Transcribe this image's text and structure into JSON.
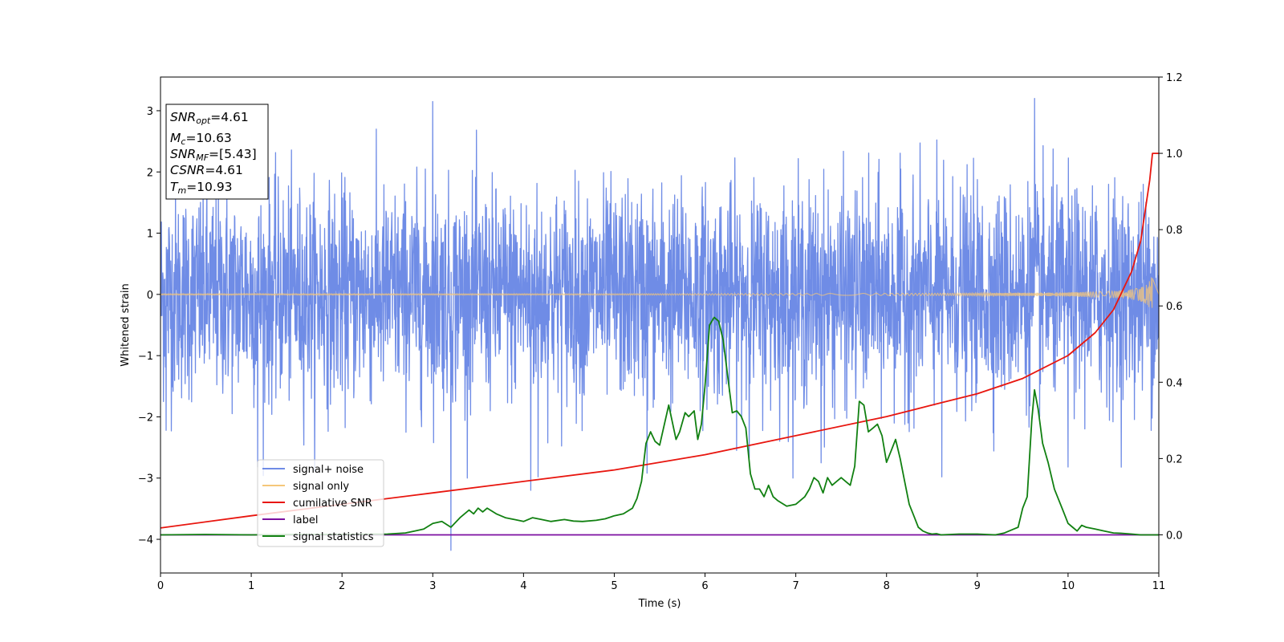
{
  "chart_data": {
    "type": "line",
    "xlabel": "Time (s)",
    "ylabel": "Whitened strain",
    "xlim": [
      0,
      11
    ],
    "ylim": [
      -4.55,
      3.55
    ],
    "ylim_right": [
      -0.1,
      1.2
    ],
    "x_ticks": [
      "0",
      "1",
      "2",
      "3",
      "4",
      "5",
      "6",
      "7",
      "8",
      "9",
      "10",
      "11"
    ],
    "y_ticks": [
      "−4",
      "−3",
      "−2",
      "−1",
      "0",
      "1",
      "2",
      "3"
    ],
    "y_ticks_right": [
      "0.0",
      "0.2",
      "0.4",
      "0.6",
      "0.8",
      "1.0",
      "1.2"
    ],
    "grid": false,
    "legend_position": "lower-left",
    "annotation": {
      "lines": [
        {
          "base": "SNR",
          "sub": "opt",
          "value": "=4.61"
        },
        {
          "base": "M",
          "sub": "c",
          "value": "=10.63"
        },
        {
          "base": "SNR",
          "sub": "MF",
          "value": "=[5.43]"
        },
        {
          "base": "CSNR",
          "sub": "",
          "value": "=4.61"
        },
        {
          "base": "T",
          "sub": "m",
          "value": "=10.93"
        }
      ]
    },
    "series": [
      {
        "name": "signal+ noise",
        "color": "#6f8ce6",
        "axis": "left",
        "style": "noise",
        "description_values": {
          "std": 0.85,
          "max": 3.2,
          "min": -4.18
        },
        "spikes": [
          {
            "x": 3.2,
            "y": -4.18
          },
          {
            "x": 9.63,
            "y": 3.2
          },
          {
            "x": 3.0,
            "y": 3.15
          },
          {
            "x": 4.08,
            "y": -3.2
          },
          {
            "x": 4.16,
            "y": -2.98
          },
          {
            "x": 5.36,
            "y": -2.92
          },
          {
            "x": 1.07,
            "y": -2.82
          },
          {
            "x": 7.28,
            "y": -2.75
          },
          {
            "x": 8.61,
            "y": -2.98
          },
          {
            "x": 10.0,
            "y": -2.82
          },
          {
            "x": 0.06,
            "y": -2.22
          }
        ]
      },
      {
        "name": "signal only",
        "color": "#f5c77a",
        "axis": "left",
        "style": "chirp",
        "amplitude_end": 0.5,
        "merger_time": 10.93
      },
      {
        "name": "cumilative SNR",
        "color": "#e8160f",
        "axis": "right",
        "x": [
          0,
          1,
          2,
          3,
          4,
          5,
          6,
          7,
          8,
          8.5,
          9,
          9.5,
          10,
          10.3,
          10.5,
          10.7,
          10.8,
          10.9,
          10.93,
          11
        ],
        "y": [
          0.018,
          0.05,
          0.08,
          0.11,
          0.14,
          0.17,
          0.21,
          0.26,
          0.31,
          0.34,
          0.37,
          0.41,
          0.47,
          0.53,
          0.59,
          0.69,
          0.77,
          0.93,
          1.0,
          1.0
        ]
      },
      {
        "name": "label",
        "color": "#7b0fa0",
        "axis": "right",
        "x": [
          0,
          11
        ],
        "y": [
          0,
          0
        ]
      },
      {
        "name": "signal statistics",
        "color": "#118011",
        "axis": "right",
        "x": [
          0,
          0.5,
          1,
          1.5,
          2,
          2.5,
          2.7,
          2.8,
          2.9,
          3.0,
          3.1,
          3.2,
          3.3,
          3.4,
          3.45,
          3.5,
          3.55,
          3.6,
          3.7,
          3.8,
          3.9,
          4.0,
          4.1,
          4.2,
          4.3,
          4.45,
          4.55,
          4.65,
          4.8,
          4.9,
          5.0,
          5.1,
          5.2,
          5.25,
          5.3,
          5.35,
          5.4,
          5.45,
          5.5,
          5.6,
          5.68,
          5.72,
          5.78,
          5.82,
          5.88,
          5.92,
          5.96,
          6.0,
          6.05,
          6.1,
          6.15,
          6.2,
          6.3,
          6.35,
          6.4,
          6.45,
          6.5,
          6.55,
          6.6,
          6.65,
          6.7,
          6.75,
          6.8,
          6.9,
          7.0,
          7.1,
          7.15,
          7.2,
          7.25,
          7.3,
          7.35,
          7.4,
          7.45,
          7.5,
          7.55,
          7.6,
          7.65,
          7.7,
          7.75,
          7.8,
          7.85,
          7.9,
          7.95,
          8.0,
          8.05,
          8.1,
          8.15,
          8.2,
          8.25,
          8.3,
          8.35,
          8.4,
          8.45,
          8.5,
          8.55,
          8.6,
          8.7,
          8.8,
          9.0,
          9.2,
          9.3,
          9.4,
          9.45,
          9.5,
          9.55,
          9.6,
          9.63,
          9.67,
          9.72,
          9.78,
          9.85,
          9.95,
          10.0,
          10.05,
          10.1,
          10.15,
          10.2,
          10.3,
          10.4,
          10.5,
          10.6,
          10.7,
          10.8,
          10.9,
          11
        ],
        "y": [
          0.0,
          0.001,
          0.0,
          0.001,
          0.001,
          0.002,
          0.005,
          0.01,
          0.015,
          0.03,
          0.035,
          0.02,
          0.045,
          0.065,
          0.055,
          0.07,
          0.06,
          0.07,
          0.055,
          0.045,
          0.04,
          0.035,
          0.045,
          0.04,
          0.035,
          0.04,
          0.036,
          0.035,
          0.038,
          0.042,
          0.05,
          0.055,
          0.07,
          0.095,
          0.14,
          0.24,
          0.27,
          0.245,
          0.235,
          0.34,
          0.25,
          0.27,
          0.32,
          0.31,
          0.325,
          0.25,
          0.29,
          0.39,
          0.55,
          0.57,
          0.56,
          0.51,
          0.32,
          0.325,
          0.31,
          0.28,
          0.16,
          0.12,
          0.12,
          0.1,
          0.13,
          0.1,
          0.09,
          0.075,
          0.08,
          0.1,
          0.12,
          0.15,
          0.14,
          0.11,
          0.15,
          0.13,
          0.14,
          0.15,
          0.14,
          0.13,
          0.18,
          0.35,
          0.34,
          0.27,
          0.28,
          0.29,
          0.26,
          0.19,
          0.22,
          0.25,
          0.2,
          0.14,
          0.08,
          0.05,
          0.02,
          0.01,
          0.005,
          0.002,
          0.003,
          0.0,
          0.001,
          0.002,
          0.002,
          0.0,
          0.005,
          0.015,
          0.02,
          0.07,
          0.1,
          0.3,
          0.38,
          0.33,
          0.24,
          0.19,
          0.12,
          0.06,
          0.03,
          0.02,
          0.01,
          0.025,
          0.02,
          0.015,
          0.01,
          0.005,
          0.004,
          0.002,
          0.0,
          0.0,
          0.0
        ]
      }
    ]
  }
}
